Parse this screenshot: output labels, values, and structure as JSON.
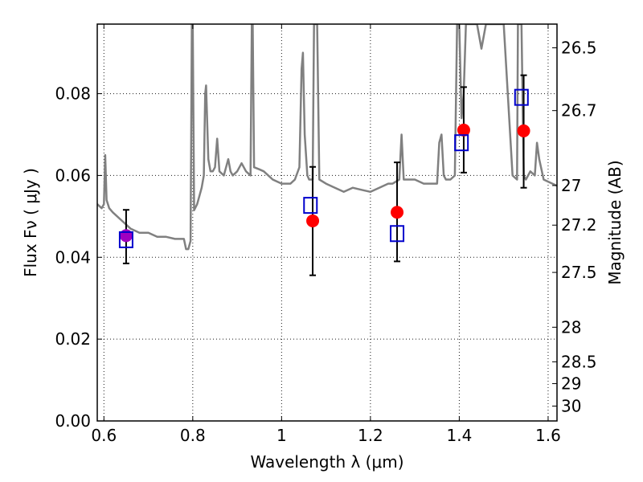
{
  "chart_data": {
    "type": "scatter",
    "title": "",
    "xlabel": "Wavelength  λ (μm)",
    "ylabel": "Flux  Fν  ( μJy )",
    "y2label": "Magnitude (AB)",
    "xlim": [
      0.585,
      1.62
    ],
    "ylim": [
      0.0,
      0.097
    ],
    "grid": true,
    "x_ticks": [
      0.6,
      0.8,
      1.0,
      1.2,
      1.4,
      1.6
    ],
    "x_tick_labels": [
      "0.6",
      "0.8",
      "1",
      "1.2",
      "1.4",
      "1.6"
    ],
    "y_ticks": [
      0.0,
      0.02,
      0.04,
      0.06,
      0.08
    ],
    "y_tick_labels": [
      "0.00",
      "0.02",
      "0.04",
      "0.06",
      "0.08"
    ],
    "mag_ticks": [
      26.5,
      26.7,
      27,
      27.2,
      27.5,
      28,
      28.5,
      29,
      30
    ],
    "mag_tick_labels": [
      "26.5",
      "26.7",
      "27",
      "27.2",
      "27.5",
      "28",
      "28.5",
      "29",
      "30"
    ],
    "colors": {
      "model": "#808080",
      "observed": "#ff0000",
      "observed_blended": "#a000c0",
      "model_band": "#0000cc",
      "errorbar": "#000000"
    },
    "series": [
      {
        "marker": "circle",
        "points": [
          {
            "x": 0.65,
            "y": 0.0453,
            "yerr_low": 0.0385,
            "yerr_high": 0.0516
          },
          {
            "x": 1.07,
            "y": 0.0489,
            "yerr_low": 0.0356,
            "yerr_high": 0.0621
          },
          {
            "x": 1.26,
            "y": 0.051,
            "yerr_low": 0.039,
            "yerr_high": 0.0632
          },
          {
            "x": 1.41,
            "y": 0.0711,
            "yerr_low": 0.0607,
            "yerr_high": 0.0816
          },
          {
            "x": 1.545,
            "y": 0.0709,
            "yerr_low": 0.057,
            "yerr_high": 0.0845
          }
        ]
      },
      {
        "marker": "square",
        "points": [
          {
            "x": 0.65,
            "y": 0.0442
          },
          {
            "x": 1.065,
            "y": 0.0526
          },
          {
            "x": 1.26,
            "y": 0.0457
          },
          {
            "x": 1.405,
            "y": 0.0679
          },
          {
            "x": 1.54,
            "y": 0.079
          }
        ]
      },
      {
        "marker": "line",
        "points": [
          [
            0.585,
            0.053
          ],
          [
            0.595,
            0.052
          ],
          [
            0.6,
            0.053
          ],
          [
            0.603,
            0.065
          ],
          [
            0.606,
            0.054
          ],
          [
            0.612,
            0.052
          ],
          [
            0.62,
            0.051
          ],
          [
            0.64,
            0.049
          ],
          [
            0.66,
            0.047
          ],
          [
            0.68,
            0.046
          ],
          [
            0.7,
            0.046
          ],
          [
            0.72,
            0.045
          ],
          [
            0.74,
            0.045
          ],
          [
            0.76,
            0.0445
          ],
          [
            0.78,
            0.0445
          ],
          [
            0.785,
            0.042
          ],
          [
            0.79,
            0.042
          ],
          [
            0.795,
            0.044
          ],
          [
            0.798,
            0.097
          ],
          [
            0.8,
            0.097
          ],
          [
            0.803,
            0.0515
          ],
          [
            0.81,
            0.053
          ],
          [
            0.815,
            0.055
          ],
          [
            0.82,
            0.057
          ],
          [
            0.825,
            0.06
          ],
          [
            0.828,
            0.08
          ],
          [
            0.83,
            0.082
          ],
          [
            0.835,
            0.064
          ],
          [
            0.84,
            0.061
          ],
          [
            0.845,
            0.061
          ],
          [
            0.85,
            0.062
          ],
          [
            0.855,
            0.069
          ],
          [
            0.86,
            0.061
          ],
          [
            0.87,
            0.06
          ],
          [
            0.88,
            0.064
          ],
          [
            0.885,
            0.061
          ],
          [
            0.89,
            0.06
          ],
          [
            0.9,
            0.061
          ],
          [
            0.91,
            0.063
          ],
          [
            0.92,
            0.061
          ],
          [
            0.93,
            0.06
          ],
          [
            0.933,
            0.097
          ],
          [
            0.935,
            0.097
          ],
          [
            0.938,
            0.062
          ],
          [
            0.95,
            0.0615
          ],
          [
            0.96,
            0.061
          ],
          [
            0.97,
            0.06
          ],
          [
            0.98,
            0.059
          ],
          [
            1.0,
            0.058
          ],
          [
            1.02,
            0.058
          ],
          [
            1.03,
            0.059
          ],
          [
            1.04,
            0.062
          ],
          [
            1.045,
            0.086
          ],
          [
            1.048,
            0.09
          ],
          [
            1.052,
            0.07
          ],
          [
            1.058,
            0.06
          ],
          [
            1.062,
            0.059
          ],
          [
            1.07,
            0.059
          ],
          [
            1.073,
            0.097
          ],
          [
            1.08,
            0.097
          ],
          [
            1.085,
            0.059
          ],
          [
            1.1,
            0.058
          ],
          [
            1.12,
            0.057
          ],
          [
            1.14,
            0.056
          ],
          [
            1.16,
            0.057
          ],
          [
            1.18,
            0.0565
          ],
          [
            1.2,
            0.056
          ],
          [
            1.22,
            0.057
          ],
          [
            1.24,
            0.058
          ],
          [
            1.25,
            0.058
          ],
          [
            1.265,
            0.059
          ],
          [
            1.27,
            0.07
          ],
          [
            1.275,
            0.059
          ],
          [
            1.3,
            0.059
          ],
          [
            1.32,
            0.058
          ],
          [
            1.34,
            0.058
          ],
          [
            1.35,
            0.058
          ],
          [
            1.355,
            0.068
          ],
          [
            1.36,
            0.07
          ],
          [
            1.365,
            0.06
          ],
          [
            1.37,
            0.059
          ],
          [
            1.38,
            0.059
          ],
          [
            1.39,
            0.06
          ],
          [
            1.395,
            0.097
          ],
          [
            1.4,
            0.097
          ],
          [
            1.405,
            0.074
          ],
          [
            1.41,
            0.08
          ],
          [
            1.415,
            0.097
          ],
          [
            1.44,
            0.097
          ],
          [
            1.45,
            0.091
          ],
          [
            1.46,
            0.097
          ],
          [
            1.5,
            0.097
          ],
          [
            1.52,
            0.06
          ],
          [
            1.53,
            0.059
          ],
          [
            1.532,
            0.097
          ],
          [
            1.54,
            0.097
          ],
          [
            1.545,
            0.06
          ],
          [
            1.55,
            0.059
          ],
          [
            1.56,
            0.061
          ],
          [
            1.57,
            0.06
          ],
          [
            1.575,
            0.068
          ],
          [
            1.58,
            0.064
          ],
          [
            1.59,
            0.059
          ],
          [
            1.6,
            0.0585
          ],
          [
            1.62,
            0.0575
          ]
        ]
      }
    ]
  }
}
